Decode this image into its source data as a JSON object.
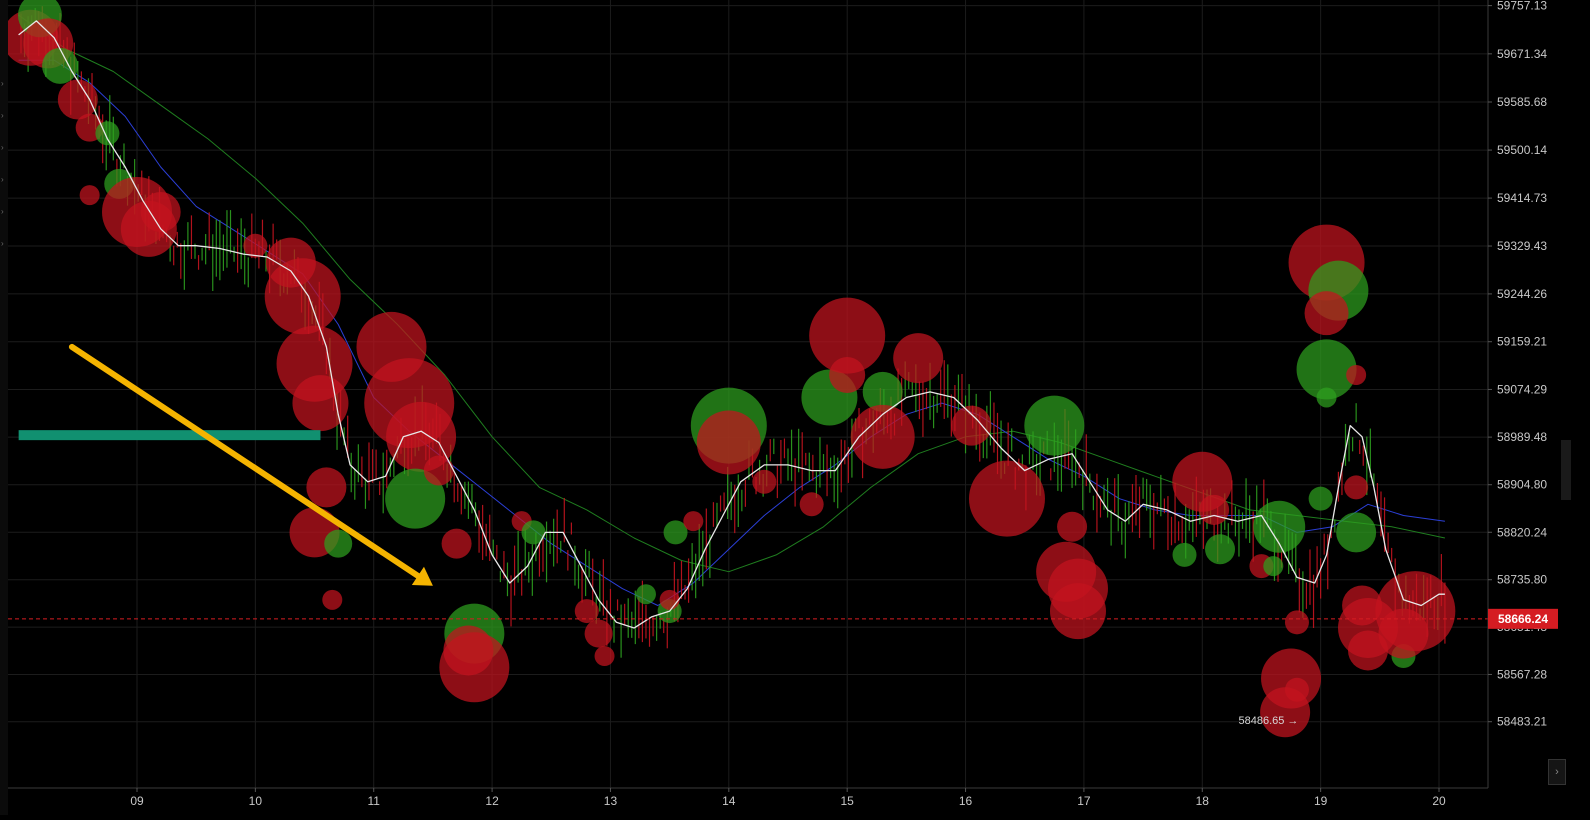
{
  "chart_data": {
    "type": "scatter",
    "description_free": true,
    "x_tick_labels": [
      "09",
      "10",
      "11",
      "12",
      "13",
      "14",
      "15",
      "16",
      "17",
      "18",
      "19",
      "20"
    ],
    "y_tick_labels": [
      "59757.13",
      "59671.34",
      "59585.68",
      "59500.14",
      "59414.73",
      "59329.43",
      "59244.26",
      "59159.21",
      "59074.29",
      "58989.48",
      "58904.80",
      "58820.24",
      "58735.80",
      "58651.48",
      "58567.28",
      "58483.21"
    ],
    "ylim": [
      58440,
      59760
    ],
    "xlim": [
      8.0,
      20.1
    ],
    "current_price": "58666.24",
    "current_price_value": 58666.24,
    "low_annotation": "58486.65",
    "low_annotation_value": 58486.65,
    "low_annotation_x": 18.88,
    "grid": true,
    "colors": {
      "background": "#000000",
      "buy": "#2ea01f",
      "sell": "#c4141f",
      "price_badge": "#d51c22",
      "ma_fast": "#e8e8e8",
      "ma_mid": "#2b3fd6",
      "ma_slow": "#1f7d1f",
      "trend_arrow": "#f5b400",
      "level_bar": "#119070"
    },
    "trend_arrow": {
      "from": [
        8.45,
        59150
      ],
      "to": [
        11.5,
        58725
      ]
    },
    "level_bar": {
      "x0": 8.0,
      "x1": 10.55,
      "y": 58993
    },
    "ma_fast": [
      [
        8.0,
        59705
      ],
      [
        8.15,
        59730
      ],
      [
        8.3,
        59700
      ],
      [
        8.45,
        59640
      ],
      [
        8.6,
        59590
      ],
      [
        8.75,
        59520
      ],
      [
        8.9,
        59470
      ],
      [
        9.05,
        59410
      ],
      [
        9.2,
        59360
      ],
      [
        9.35,
        59330
      ],
      [
        9.5,
        59330
      ],
      [
        9.7,
        59325
      ],
      [
        9.9,
        59315
      ],
      [
        10.1,
        59310
      ],
      [
        10.3,
        59285
      ],
      [
        10.45,
        59240
      ],
      [
        10.6,
        59150
      ],
      [
        10.7,
        59030
      ],
      [
        10.8,
        58940
      ],
      [
        10.95,
        58910
      ],
      [
        11.1,
        58920
      ],
      [
        11.25,
        58990
      ],
      [
        11.4,
        59000
      ],
      [
        11.55,
        58980
      ],
      [
        11.7,
        58920
      ],
      [
        11.85,
        58860
      ],
      [
        12.0,
        58780
      ],
      [
        12.15,
        58730
      ],
      [
        12.3,
        58760
      ],
      [
        12.45,
        58820
      ],
      [
        12.6,
        58820
      ],
      [
        12.75,
        58760
      ],
      [
        12.9,
        58700
      ],
      [
        13.05,
        58660
      ],
      [
        13.2,
        58650
      ],
      [
        13.35,
        58670
      ],
      [
        13.5,
        58680
      ],
      [
        13.65,
        58720
      ],
      [
        13.8,
        58790
      ],
      [
        13.95,
        58850
      ],
      [
        14.1,
        58910
      ],
      [
        14.3,
        58940
      ],
      [
        14.5,
        58940
      ],
      [
        14.7,
        58930
      ],
      [
        14.9,
        58930
      ],
      [
        15.1,
        58990
      ],
      [
        15.3,
        59030
      ],
      [
        15.5,
        59060
      ],
      [
        15.7,
        59070
      ],
      [
        15.9,
        59060
      ],
      [
        16.1,
        59020
      ],
      [
        16.3,
        58970
      ],
      [
        16.5,
        58930
      ],
      [
        16.7,
        58950
      ],
      [
        16.9,
        58960
      ],
      [
        17.05,
        58910
      ],
      [
        17.2,
        58860
      ],
      [
        17.35,
        58840
      ],
      [
        17.5,
        58870
      ],
      [
        17.7,
        58860
      ],
      [
        17.9,
        58840
      ],
      [
        18.1,
        58850
      ],
      [
        18.3,
        58840
      ],
      [
        18.5,
        58850
      ],
      [
        18.65,
        58800
      ],
      [
        18.8,
        58740
      ],
      [
        18.95,
        58730
      ],
      [
        19.05,
        58780
      ],
      [
        19.15,
        58900
      ],
      [
        19.25,
        59010
      ],
      [
        19.35,
        58990
      ],
      [
        19.45,
        58900
      ],
      [
        19.55,
        58790
      ],
      [
        19.7,
        58700
      ],
      [
        19.85,
        58690
      ],
      [
        20.0,
        58710
      ],
      [
        20.05,
        58710
      ]
    ],
    "ma_mid": [
      [
        8.0,
        59660
      ],
      [
        8.3,
        59660
      ],
      [
        8.6,
        59620
      ],
      [
        8.9,
        59560
      ],
      [
        9.2,
        59470
      ],
      [
        9.5,
        59400
      ],
      [
        9.8,
        59360
      ],
      [
        10.1,
        59320
      ],
      [
        10.4,
        59280
      ],
      [
        10.7,
        59190
      ],
      [
        11.0,
        59060
      ],
      [
        11.3,
        59000
      ],
      [
        11.6,
        58950
      ],
      [
        11.9,
        58900
      ],
      [
        12.2,
        58850
      ],
      [
        12.5,
        58800
      ],
      [
        12.8,
        58760
      ],
      [
        13.1,
        58720
      ],
      [
        13.4,
        58690
      ],
      [
        13.7,
        58730
      ],
      [
        14.0,
        58790
      ],
      [
        14.3,
        58850
      ],
      [
        14.6,
        58900
      ],
      [
        14.9,
        58940
      ],
      [
        15.2,
        58990
      ],
      [
        15.5,
        59030
      ],
      [
        15.8,
        59050
      ],
      [
        16.1,
        59030
      ],
      [
        16.4,
        58990
      ],
      [
        16.7,
        58950
      ],
      [
        17.0,
        58920
      ],
      [
        17.3,
        58880
      ],
      [
        17.6,
        58860
      ],
      [
        17.9,
        58850
      ],
      [
        18.2,
        58850
      ],
      [
        18.5,
        58850
      ],
      [
        18.8,
        58820
      ],
      [
        19.1,
        58830
      ],
      [
        19.4,
        58870
      ],
      [
        19.7,
        58850
      ],
      [
        20.05,
        58840
      ]
    ],
    "ma_slow": [
      [
        8.0,
        59740
      ],
      [
        8.4,
        59680
      ],
      [
        8.8,
        59640
      ],
      [
        9.2,
        59580
      ],
      [
        9.6,
        59520
      ],
      [
        10.0,
        59450
      ],
      [
        10.4,
        59370
      ],
      [
        10.8,
        59270
      ],
      [
        11.2,
        59190
      ],
      [
        11.6,
        59100
      ],
      [
        12.0,
        58990
      ],
      [
        12.4,
        58900
      ],
      [
        12.8,
        58860
      ],
      [
        13.2,
        58810
      ],
      [
        13.6,
        58770
      ],
      [
        14.0,
        58750
      ],
      [
        14.4,
        58780
      ],
      [
        14.8,
        58830
      ],
      [
        15.2,
        58900
      ],
      [
        15.6,
        58960
      ],
      [
        16.0,
        58990
      ],
      [
        16.4,
        59000
      ],
      [
        16.8,
        58980
      ],
      [
        17.2,
        58950
      ],
      [
        17.6,
        58920
      ],
      [
        18.0,
        58890
      ],
      [
        18.4,
        58860
      ],
      [
        18.8,
        58850
      ],
      [
        19.2,
        58840
      ],
      [
        19.6,
        58830
      ],
      [
        20.05,
        58810
      ]
    ],
    "bubbles": [
      {
        "x": 8.1,
        "y": 59700,
        "r": 28,
        "side": "sell"
      },
      {
        "x": 8.18,
        "y": 59740,
        "r": 22,
        "side": "buy"
      },
      {
        "x": 8.25,
        "y": 59690,
        "r": 25,
        "side": "sell"
      },
      {
        "x": 8.35,
        "y": 59650,
        "r": 18,
        "side": "buy"
      },
      {
        "x": 8.5,
        "y": 59590,
        "r": 20,
        "side": "sell"
      },
      {
        "x": 8.6,
        "y": 59540,
        "r": 14,
        "side": "sell"
      },
      {
        "x": 8.75,
        "y": 59530,
        "r": 12,
        "side": "buy"
      },
      {
        "x": 8.85,
        "y": 59440,
        "r": 15,
        "side": "buy"
      },
      {
        "x": 8.6,
        "y": 59420,
        "r": 10,
        "side": "sell"
      },
      {
        "x": 9.0,
        "y": 59390,
        "r": 35,
        "side": "sell"
      },
      {
        "x": 9.1,
        "y": 59360,
        "r": 28,
        "side": "sell"
      },
      {
        "x": 9.2,
        "y": 59390,
        "r": 20,
        "side": "sell"
      },
      {
        "x": 10.0,
        "y": 59330,
        "r": 12,
        "side": "sell"
      },
      {
        "x": 10.3,
        "y": 59300,
        "r": 25,
        "side": "sell"
      },
      {
        "x": 10.4,
        "y": 59240,
        "r": 38,
        "side": "sell"
      },
      {
        "x": 10.5,
        "y": 59120,
        "r": 38,
        "side": "sell"
      },
      {
        "x": 10.55,
        "y": 59050,
        "r": 28,
        "side": "sell"
      },
      {
        "x": 11.15,
        "y": 59150,
        "r": 35,
        "side": "sell"
      },
      {
        "x": 11.3,
        "y": 59050,
        "r": 45,
        "side": "sell"
      },
      {
        "x": 11.4,
        "y": 58990,
        "r": 35,
        "side": "sell"
      },
      {
        "x": 11.35,
        "y": 58880,
        "r": 30,
        "side": "buy"
      },
      {
        "x": 11.55,
        "y": 58930,
        "r": 15,
        "side": "sell"
      },
      {
        "x": 10.6,
        "y": 58900,
        "r": 20,
        "side": "sell"
      },
      {
        "x": 10.5,
        "y": 58820,
        "r": 25,
        "side": "sell"
      },
      {
        "x": 10.7,
        "y": 58800,
        "r": 14,
        "side": "buy"
      },
      {
        "x": 10.65,
        "y": 58700,
        "r": 10,
        "side": "sell"
      },
      {
        "x": 11.7,
        "y": 58800,
        "r": 15,
        "side": "sell"
      },
      {
        "x": 11.85,
        "y": 58640,
        "r": 30,
        "side": "buy"
      },
      {
        "x": 11.85,
        "y": 58580,
        "r": 35,
        "side": "sell"
      },
      {
        "x": 11.8,
        "y": 58610,
        "r": 25,
        "side": "sell"
      },
      {
        "x": 12.25,
        "y": 58840,
        "r": 10,
        "side": "sell"
      },
      {
        "x": 12.35,
        "y": 58820,
        "r": 12,
        "side": "buy"
      },
      {
        "x": 12.8,
        "y": 58680,
        "r": 12,
        "side": "sell"
      },
      {
        "x": 12.9,
        "y": 58640,
        "r": 14,
        "side": "sell"
      },
      {
        "x": 12.95,
        "y": 58600,
        "r": 10,
        "side": "sell"
      },
      {
        "x": 13.3,
        "y": 58710,
        "r": 10,
        "side": "buy"
      },
      {
        "x": 13.5,
        "y": 58680,
        "r": 12,
        "side": "buy"
      },
      {
        "x": 13.5,
        "y": 58700,
        "r": 10,
        "side": "sell"
      },
      {
        "x": 13.55,
        "y": 58820,
        "r": 12,
        "side": "buy"
      },
      {
        "x": 13.7,
        "y": 58840,
        "r": 10,
        "side": "sell"
      },
      {
        "x": 14.0,
        "y": 59010,
        "r": 38,
        "side": "buy"
      },
      {
        "x": 14.0,
        "y": 58980,
        "r": 32,
        "side": "sell"
      },
      {
        "x": 14.3,
        "y": 58910,
        "r": 12,
        "side": "sell"
      },
      {
        "x": 14.7,
        "y": 58870,
        "r": 12,
        "side": "sell"
      },
      {
        "x": 14.85,
        "y": 59060,
        "r": 28,
        "side": "buy"
      },
      {
        "x": 15.0,
        "y": 59170,
        "r": 38,
        "side": "sell"
      },
      {
        "x": 15.0,
        "y": 59100,
        "r": 18,
        "side": "sell"
      },
      {
        "x": 15.3,
        "y": 59070,
        "r": 20,
        "side": "buy"
      },
      {
        "x": 15.3,
        "y": 58990,
        "r": 32,
        "side": "sell"
      },
      {
        "x": 15.6,
        "y": 59130,
        "r": 25,
        "side": "sell"
      },
      {
        "x": 16.05,
        "y": 59010,
        "r": 20,
        "side": "sell"
      },
      {
        "x": 16.35,
        "y": 58880,
        "r": 38,
        "side": "sell"
      },
      {
        "x": 16.75,
        "y": 59010,
        "r": 30,
        "side": "buy"
      },
      {
        "x": 16.85,
        "y": 58750,
        "r": 30,
        "side": "sell"
      },
      {
        "x": 16.95,
        "y": 58720,
        "r": 30,
        "side": "sell"
      },
      {
        "x": 16.95,
        "y": 58680,
        "r": 28,
        "side": "sell"
      },
      {
        "x": 16.9,
        "y": 58830,
        "r": 15,
        "side": "sell"
      },
      {
        "x": 17.85,
        "y": 58780,
        "r": 12,
        "side": "buy"
      },
      {
        "x": 18.0,
        "y": 58910,
        "r": 30,
        "side": "sell"
      },
      {
        "x": 18.1,
        "y": 58860,
        "r": 15,
        "side": "sell"
      },
      {
        "x": 18.15,
        "y": 58790,
        "r": 15,
        "side": "buy"
      },
      {
        "x": 18.5,
        "y": 58760,
        "r": 12,
        "side": "sell"
      },
      {
        "x": 18.6,
        "y": 58760,
        "r": 10,
        "side": "buy"
      },
      {
        "x": 18.65,
        "y": 58830,
        "r": 26,
        "side": "buy"
      },
      {
        "x": 18.8,
        "y": 58660,
        "r": 12,
        "side": "sell"
      },
      {
        "x": 18.75,
        "y": 58560,
        "r": 30,
        "side": "sell"
      },
      {
        "x": 18.7,
        "y": 58500,
        "r": 25,
        "side": "sell"
      },
      {
        "x": 18.8,
        "y": 58540,
        "r": 12,
        "side": "sell"
      },
      {
        "x": 19.0,
        "y": 58880,
        "r": 12,
        "side": "buy"
      },
      {
        "x": 19.05,
        "y": 59300,
        "r": 38,
        "side": "sell"
      },
      {
        "x": 19.15,
        "y": 59250,
        "r": 30,
        "side": "buy"
      },
      {
        "x": 19.05,
        "y": 59210,
        "r": 22,
        "side": "sell"
      },
      {
        "x": 19.05,
        "y": 59110,
        "r": 30,
        "side": "buy"
      },
      {
        "x": 19.05,
        "y": 59060,
        "r": 10,
        "side": "buy"
      },
      {
        "x": 19.3,
        "y": 59100,
        "r": 10,
        "side": "sell"
      },
      {
        "x": 19.3,
        "y": 58900,
        "r": 12,
        "side": "sell"
      },
      {
        "x": 19.3,
        "y": 58820,
        "r": 20,
        "side": "buy"
      },
      {
        "x": 19.35,
        "y": 58690,
        "r": 20,
        "side": "sell"
      },
      {
        "x": 19.4,
        "y": 58650,
        "r": 30,
        "side": "sell"
      },
      {
        "x": 19.4,
        "y": 58610,
        "r": 20,
        "side": "sell"
      },
      {
        "x": 19.7,
        "y": 58600,
        "r": 12,
        "side": "buy"
      },
      {
        "x": 19.8,
        "y": 58680,
        "r": 40,
        "side": "sell"
      },
      {
        "x": 19.7,
        "y": 58640,
        "r": 25,
        "side": "sell"
      }
    ]
  }
}
